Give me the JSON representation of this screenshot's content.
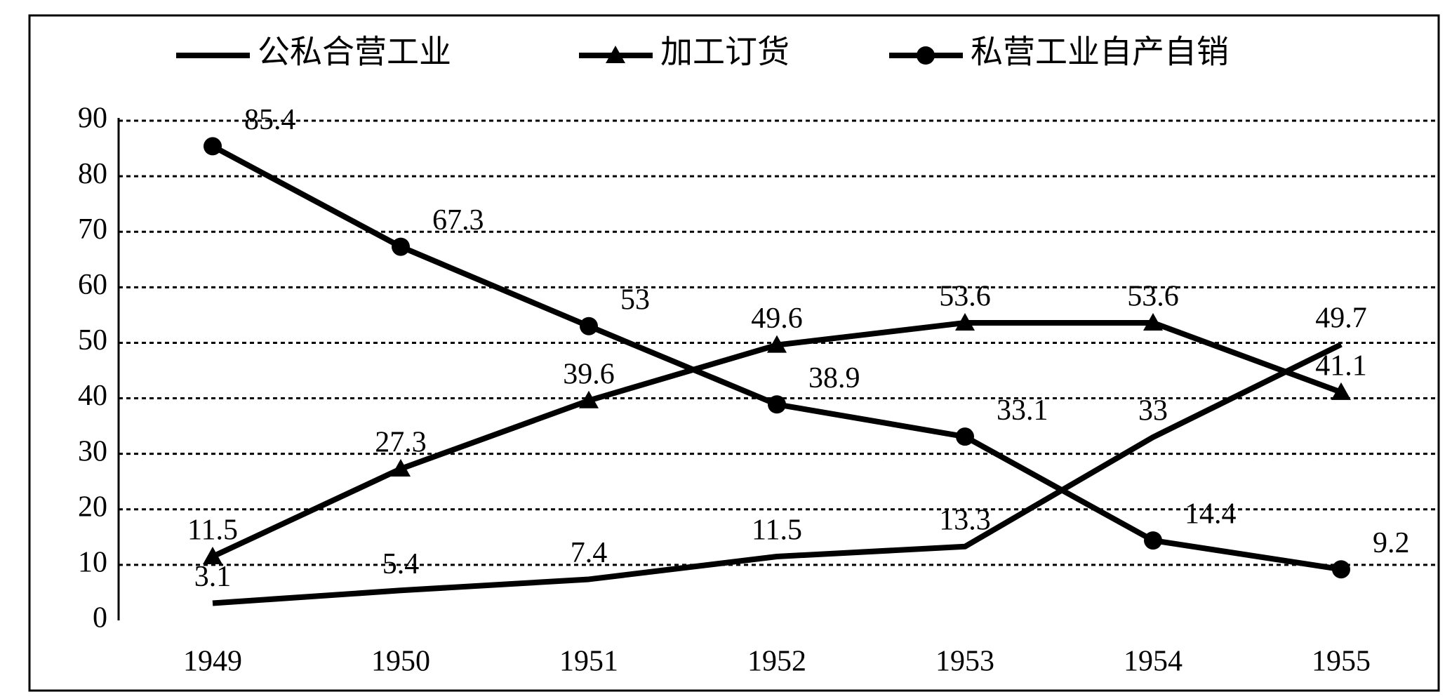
{
  "chart_data": {
    "type": "line",
    "categories": [
      "1949",
      "1950",
      "1951",
      "1952",
      "1953",
      "1954",
      "1955"
    ],
    "series": [
      {
        "name": "公私合营工业",
        "color": "#000000",
        "marker": "none",
        "values": [
          3.1,
          5.4,
          7.4,
          11.5,
          13.3,
          33,
          49.7
        ]
      },
      {
        "name": "加工订货",
        "color": "#000000",
        "marker": "triangle",
        "values": [
          11.5,
          27.3,
          39.6,
          49.6,
          53.6,
          53.6,
          41.1
        ]
      },
      {
        "name": "私营工业自产自销",
        "color": "#000000",
        "marker": "circle",
        "values": [
          85.4,
          67.3,
          53,
          38.9,
          33.1,
          14.4,
          9.2
        ]
      }
    ],
    "ylim": [
      0,
      90
    ],
    "yticks": [
      0,
      10,
      20,
      30,
      40,
      50,
      60,
      70,
      80,
      90
    ],
    "grid": true,
    "legend": "top"
  }
}
